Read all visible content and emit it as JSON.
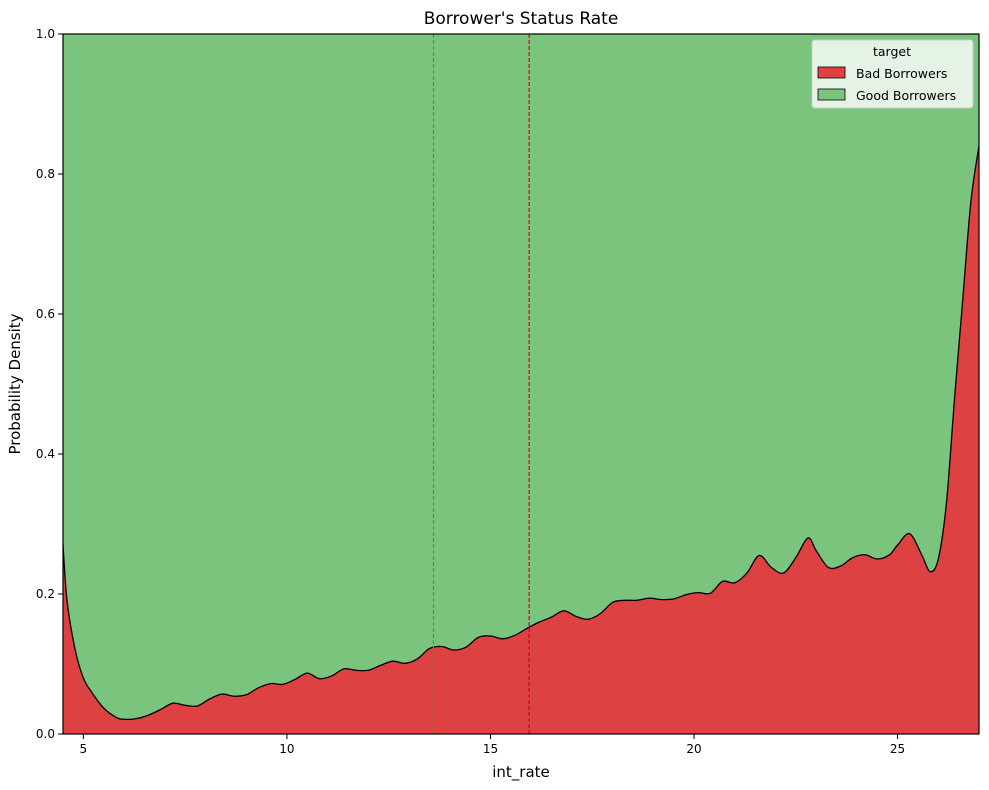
{
  "chart_data": {
    "type": "area",
    "stacked": true,
    "normalized": true,
    "title": "Borrower's Status Rate",
    "xlabel": "int_rate",
    "ylabel": "Probability Density",
    "xlim": [
      4.5,
      27.0
    ],
    "ylim": [
      0.0,
      1.0
    ],
    "x_ticks": [
      5,
      10,
      15,
      20,
      25
    ],
    "y_ticks": [
      0.0,
      0.2,
      0.4,
      0.6,
      0.8,
      1.0
    ],
    "grid": false,
    "legend": {
      "title": "target",
      "placement": "top-right",
      "entries": [
        "Bad Borrowers",
        "Good Borrowers"
      ]
    },
    "series": [
      {
        "name": "Bad Borrowers",
        "color": "#de4142"
      },
      {
        "name": "Good Borrowers",
        "color": "#7bc47d"
      }
    ],
    "boundary": {
      "x": [
        4.5,
        4.6,
        4.8,
        5.0,
        5.2,
        5.5,
        5.8,
        6.0,
        6.3,
        6.6,
        6.9,
        7.2,
        7.5,
        7.8,
        8.1,
        8.4,
        8.7,
        9.0,
        9.3,
        9.6,
        9.9,
        10.2,
        10.5,
        10.8,
        11.1,
        11.4,
        11.7,
        12.0,
        12.3,
        12.6,
        12.9,
        13.2,
        13.5,
        13.8,
        14.1,
        14.4,
        14.7,
        15.0,
        15.3,
        15.6,
        15.9,
        16.2,
        16.5,
        16.8,
        17.1,
        17.4,
        17.7,
        18.0,
        18.3,
        18.6,
        18.9,
        19.2,
        19.5,
        19.8,
        20.1,
        20.4,
        20.7,
        21.0,
        21.3,
        21.6,
        21.9,
        22.2,
        22.5,
        22.8,
        23.0,
        23.3,
        23.6,
        23.9,
        24.2,
        24.5,
        24.8,
        25.0,
        25.3,
        25.6,
        25.8,
        26.0,
        26.2,
        26.4,
        26.6,
        26.8,
        27.0
      ],
      "y": [
        0.27,
        0.19,
        0.12,
        0.08,
        0.06,
        0.037,
        0.024,
        0.021,
        0.022,
        0.027,
        0.035,
        0.044,
        0.041,
        0.04,
        0.05,
        0.057,
        0.054,
        0.056,
        0.066,
        0.072,
        0.071,
        0.078,
        0.087,
        0.079,
        0.083,
        0.093,
        0.091,
        0.091,
        0.098,
        0.104,
        0.101,
        0.107,
        0.122,
        0.125,
        0.12,
        0.124,
        0.138,
        0.14,
        0.136,
        0.141,
        0.151,
        0.16,
        0.167,
        0.176,
        0.168,
        0.164,
        0.172,
        0.188,
        0.191,
        0.191,
        0.194,
        0.192,
        0.193,
        0.199,
        0.202,
        0.201,
        0.218,
        0.216,
        0.23,
        0.255,
        0.238,
        0.23,
        0.252,
        0.28,
        0.262,
        0.238,
        0.24,
        0.252,
        0.256,
        0.25,
        0.256,
        0.27,
        0.286,
        0.255,
        0.232,
        0.25,
        0.33,
        0.48,
        0.62,
        0.76,
        0.84
      ]
    },
    "reference_lines": [
      {
        "x": 13.6,
        "color": "#3aa23c",
        "style": "dashed"
      },
      {
        "x": 15.95,
        "color": "#d0021b",
        "style": "dashed"
      }
    ]
  }
}
